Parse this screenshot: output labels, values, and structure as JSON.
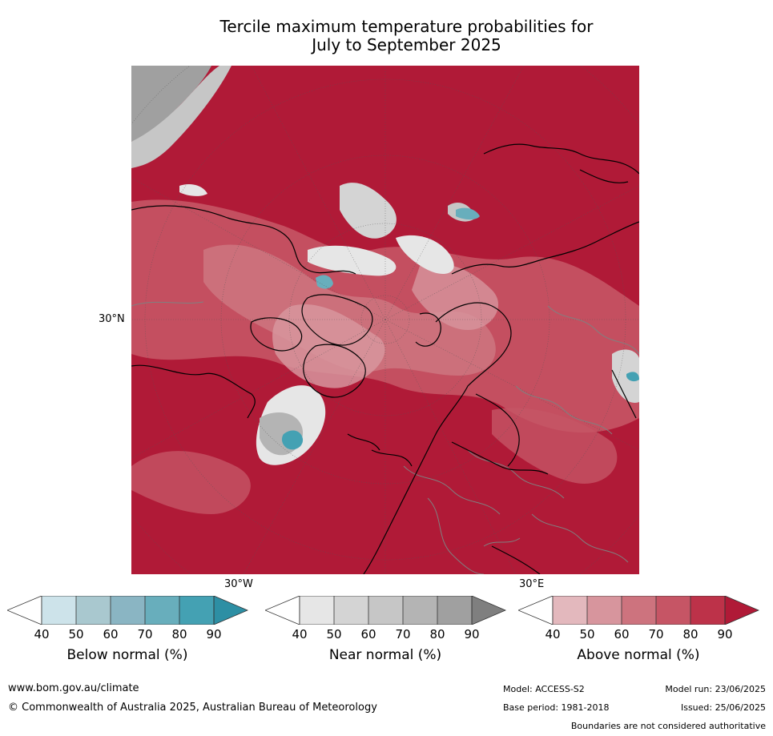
{
  "title": {
    "line1": "Tercile maximum temperature probabilities for",
    "line2": "July to September 2025"
  },
  "map": {
    "lat_label": "30°N",
    "lon_labels": [
      "30°W",
      "30°E"
    ],
    "colors": {
      "above_dominant": "#b01a37",
      "coastline": "#000000",
      "borders": "#808080",
      "grid": "#555555"
    }
  },
  "colorbars": [
    {
      "id": "below",
      "label": "Below normal (%)",
      "ticks": [
        "40",
        "50",
        "60",
        "70",
        "80",
        "90"
      ],
      "colors": [
        "#ffffff",
        "#cde3ea",
        "#a9c8cf",
        "#8ab5c3",
        "#68aebc",
        "#44a1b3",
        "#2d8fa4"
      ]
    },
    {
      "id": "near",
      "label": "Near normal (%)",
      "ticks": [
        "40",
        "50",
        "60",
        "70",
        "80",
        "90"
      ],
      "colors": [
        "#ffffff",
        "#e6e6e6",
        "#d4d4d4",
        "#c6c6c6",
        "#b4b4b4",
        "#a0a0a0",
        "#7f7f7f"
      ]
    },
    {
      "id": "above",
      "label": "Above normal (%)",
      "ticks": [
        "40",
        "50",
        "60",
        "70",
        "80",
        "90"
      ],
      "colors": [
        "#ffffff",
        "#e3b8bd",
        "#d7959d",
        "#cd737e",
        "#c65565",
        "#bd3249",
        "#b01a37"
      ]
    }
  ],
  "footer": {
    "website": "www.bom.gov.au/climate",
    "copyright": "© Commonwealth of Australia 2025, Australian Bureau of Meteorology",
    "model": "Model: ACCESS-S2",
    "base_period": "Base period: 1981-2018",
    "model_run": "Model run: 23/06/2025",
    "issued": "Issued: 25/06/2025",
    "disclaimer": "Boundaries are not considered authoritative"
  }
}
